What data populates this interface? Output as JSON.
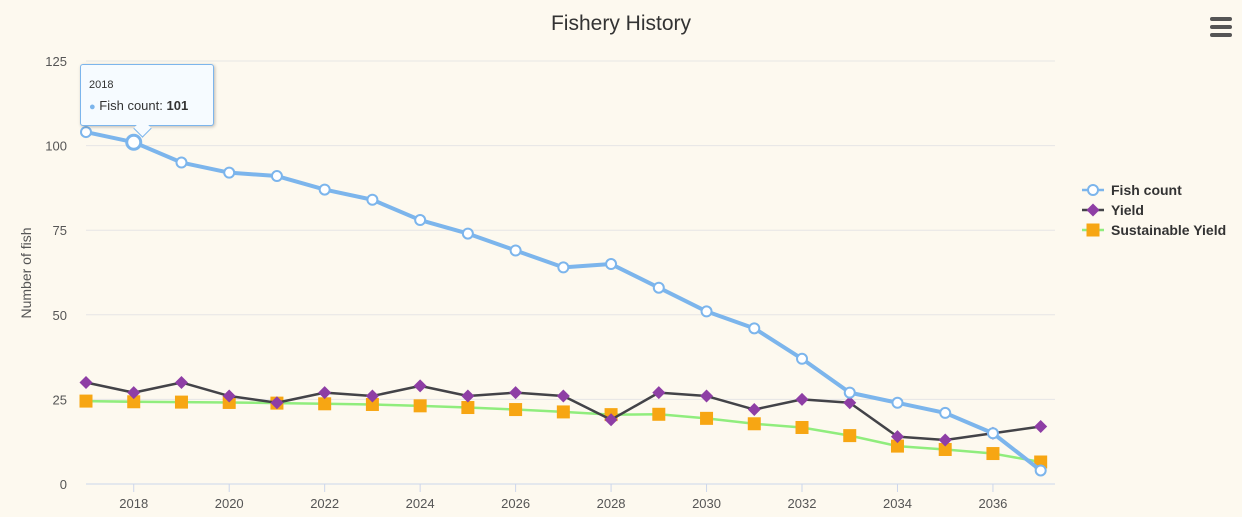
{
  "menu": {
    "icon": "hamburger-menu-icon"
  },
  "tooltip": {
    "x_label": "2018",
    "series_name": "Fish count",
    "value_text": "101"
  },
  "colors": {
    "fish_count": "#7cb5ec",
    "yield": "#8e3ea5",
    "yield_line": "#434348",
    "sustainable_marker": "#f7a613",
    "sustainable_line": "#90ed7d",
    "grid": "#e6e6e6",
    "background": "#fdf9ef"
  },
  "chart_data": {
    "type": "line",
    "title": "Fishery History",
    "xlabel": "",
    "ylabel": "Number of fish",
    "x": [
      2017,
      2018,
      2019,
      2020,
      2021,
      2022,
      2023,
      2024,
      2025,
      2026,
      2027,
      2028,
      2029,
      2030,
      2031,
      2032,
      2033,
      2034,
      2035,
      2036,
      2037
    ],
    "x_ticks": [
      2018,
      2020,
      2022,
      2024,
      2026,
      2028,
      2030,
      2032,
      2034,
      2036
    ],
    "y_ticks": [
      0,
      25,
      50,
      75,
      100,
      125
    ],
    "ylim": [
      0,
      125
    ],
    "xlim": [
      2017,
      2037.3
    ],
    "grid": true,
    "legend_position": "right",
    "series": [
      {
        "name": "Fish count",
        "marker": "circle",
        "values": [
          104,
          101,
          95,
          92,
          91,
          87,
          84,
          78,
          74,
          69,
          64,
          65,
          58,
          51,
          46,
          37,
          27,
          24,
          21,
          15,
          4
        ]
      },
      {
        "name": "Yield",
        "marker": "diamond",
        "values": [
          30,
          27,
          30,
          26,
          24,
          27,
          26,
          29,
          26,
          27,
          26,
          19,
          27,
          26,
          22,
          25,
          24,
          14,
          13,
          15,
          17
        ]
      },
      {
        "name": "Sustainable Yield",
        "marker": "square",
        "values": [
          24.5,
          24.3,
          24.2,
          24.1,
          23.9,
          23.7,
          23.5,
          23.1,
          22.6,
          22,
          21.3,
          20.5,
          20.6,
          19.4,
          17.8,
          16.7,
          14.3,
          11.2,
          10.2,
          9,
          6.5
        ]
      }
    ]
  }
}
